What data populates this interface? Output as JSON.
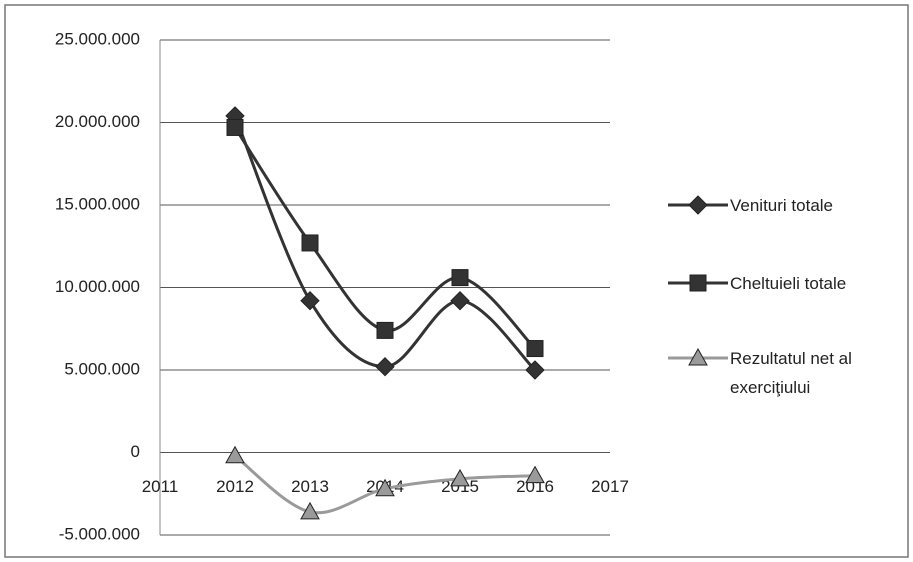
{
  "chart_data": {
    "type": "line",
    "x": [
      2012,
      2013,
      2014,
      2015,
      2016
    ],
    "series": [
      {
        "name": "Venituri totale",
        "color": "#333333",
        "marker": "diamond",
        "values": [
          20400000,
          9200000,
          5200000,
          9200000,
          5000000
        ]
      },
      {
        "name": "Cheltuieli totale",
        "color": "#333333",
        "marker": "square",
        "values": [
          19700000,
          12700000,
          7400000,
          10600000,
          6300000
        ]
      },
      {
        "name": "Rezultatul net al exerciţiului",
        "color": "#9a9a9a",
        "marker": "triangle",
        "values": [
          -200000,
          -3600000,
          -2200000,
          -1600000,
          -1400000
        ]
      }
    ],
    "xlim": [
      2011,
      2017
    ],
    "xticks": [
      2011,
      2012,
      2013,
      2014,
      2015,
      2016,
      2017
    ],
    "ylim": [
      -5000000,
      25000000
    ],
    "yticks": [
      {
        "value": -5000000,
        "label": "-5.000.000"
      },
      0,
      {
        "value": 5000000,
        "label": "5.000.000"
      },
      {
        "value": 10000000,
        "label": "10.000.000"
      },
      {
        "value": 15000000,
        "label": "15.000.000"
      },
      {
        "value": 20000000,
        "label": "20.000.000"
      },
      {
        "value": 25000000,
        "label": "25.000.000"
      }
    ],
    "grid": true,
    "smooth": true,
    "legend": "right"
  }
}
